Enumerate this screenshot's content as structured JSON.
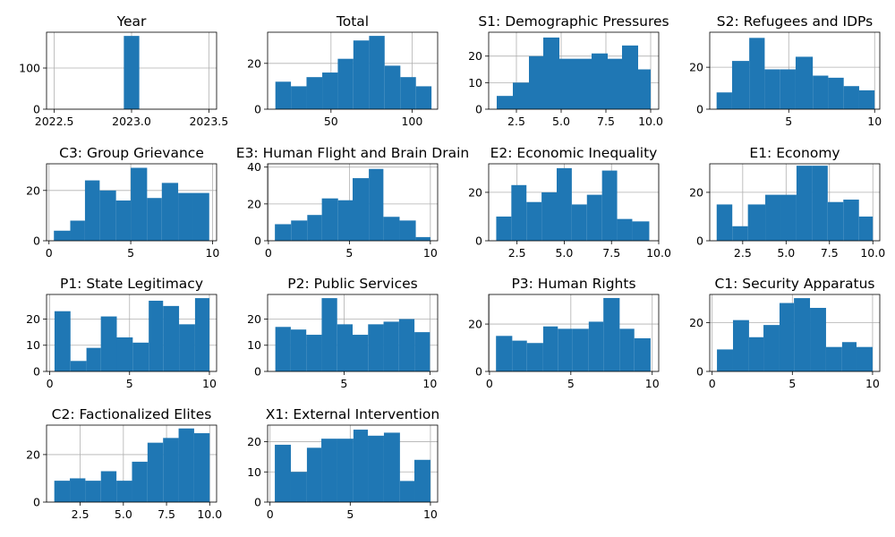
{
  "chart_data": [
    {
      "type": "bar",
      "title": "Year",
      "xlim": [
        2022.45,
        2023.55
      ],
      "ylim": [
        0,
        187
      ],
      "xticks": [
        {
          "v": 2022.5,
          "l": "2022.5"
        },
        {
          "v": 2023.0,
          "l": "2023.0"
        },
        {
          "v": 2023.5,
          "l": "2023.5"
        }
      ],
      "yticks": [
        {
          "v": 0,
          "l": "0"
        },
        {
          "v": 100,
          "l": "100"
        }
      ],
      "bins": [
        {
          "x0": 2022.95,
          "x1": 2023.05,
          "h": 178
        }
      ],
      "color": "#1f77b4"
    },
    {
      "type": "bar",
      "title": "Total",
      "xlim": [
        10.9,
        115.8
      ],
      "ylim": [
        0,
        33.6
      ],
      "xticks": [
        {
          "v": 50,
          "l": "50"
        },
        {
          "v": 100,
          "l": "100"
        }
      ],
      "yticks": [
        {
          "v": 0,
          "l": "0"
        },
        {
          "v": 20,
          "l": "20"
        }
      ],
      "bins": [
        {
          "x0": 15.7,
          "x1": 25.3,
          "h": 12
        },
        {
          "x0": 25.3,
          "x1": 34.9,
          "h": 10
        },
        {
          "x0": 34.9,
          "x1": 44.6,
          "h": 14
        },
        {
          "x0": 44.6,
          "x1": 54.2,
          "h": 16
        },
        {
          "x0": 54.2,
          "x1": 63.8,
          "h": 22
        },
        {
          "x0": 63.8,
          "x1": 73.5,
          "h": 30
        },
        {
          "x0": 73.5,
          "x1": 83.1,
          "h": 32
        },
        {
          "x0": 83.1,
          "x1": 92.8,
          "h": 19
        },
        {
          "x0": 92.8,
          "x1": 102.4,
          "h": 14
        },
        {
          "x0": 102.4,
          "x1": 112.0,
          "h": 10
        }
      ],
      "color": "#1f77b4"
    },
    {
      "type": "bar",
      "title": "S1: Demographic Pressures",
      "xlim": [
        0.95,
        10.45
      ],
      "ylim": [
        0,
        29
      ],
      "xticks": [
        {
          "v": 2.5,
          "l": "2.5"
        },
        {
          "v": 5.0,
          "l": "5.0"
        },
        {
          "v": 7.5,
          "l": "7.5"
        },
        {
          "v": 10.0,
          "l": "10.0"
        }
      ],
      "yticks": [
        {
          "v": 0,
          "l": "0"
        },
        {
          "v": 10,
          "l": "10"
        },
        {
          "v": 20,
          "l": "20"
        }
      ],
      "bins": [
        {
          "x0": 1.4,
          "x1": 2.3,
          "h": 5
        },
        {
          "x0": 2.3,
          "x1": 3.2,
          "h": 10
        },
        {
          "x0": 3.2,
          "x1": 4.0,
          "h": 20
        },
        {
          "x0": 4.0,
          "x1": 4.9,
          "h": 27
        },
        {
          "x0": 4.9,
          "x1": 5.8,
          "h": 19
        },
        {
          "x0": 5.8,
          "x1": 6.7,
          "h": 19
        },
        {
          "x0": 6.7,
          "x1": 7.6,
          "h": 21
        },
        {
          "x0": 7.6,
          "x1": 8.4,
          "h": 19
        },
        {
          "x0": 8.4,
          "x1": 9.3,
          "h": 24
        },
        {
          "x0": 9.3,
          "x1": 10.0,
          "h": 15
        }
      ],
      "color": "#1f77b4"
    },
    {
      "type": "bar",
      "title": "S2: Refugees and IDPs",
      "xlim": [
        0.4,
        10.3
      ],
      "ylim": [
        0,
        36.7
      ],
      "xticks": [
        {
          "v": 5,
          "l": "5"
        },
        {
          "v": 10,
          "l": "10"
        }
      ],
      "yticks": [
        {
          "v": 0,
          "l": "0"
        },
        {
          "v": 20,
          "l": "20"
        }
      ],
      "bins": [
        {
          "x0": 0.8,
          "x1": 1.7,
          "h": 8
        },
        {
          "x0": 1.7,
          "x1": 2.7,
          "h": 23
        },
        {
          "x0": 2.7,
          "x1": 3.6,
          "h": 34
        },
        {
          "x0": 3.6,
          "x1": 4.5,
          "h": 19
        },
        {
          "x0": 4.5,
          "x1": 5.4,
          "h": 19
        },
        {
          "x0": 5.4,
          "x1": 6.4,
          "h": 25
        },
        {
          "x0": 6.4,
          "x1": 7.3,
          "h": 16
        },
        {
          "x0": 7.3,
          "x1": 8.2,
          "h": 15
        },
        {
          "x0": 8.2,
          "x1": 9.1,
          "h": 11
        },
        {
          "x0": 9.1,
          "x1": 10.0,
          "h": 9
        }
      ],
      "color": "#1f77b4"
    },
    {
      "type": "bar",
      "title": "C3: Group Grievance",
      "xlim": [
        -0.15,
        10.25
      ],
      "ylim": [
        0,
        30.6
      ],
      "xticks": [
        {
          "v": 0,
          "l": "0"
        },
        {
          "v": 5,
          "l": "5"
        },
        {
          "v": 10,
          "l": "10"
        }
      ],
      "yticks": [
        {
          "v": 0,
          "l": "0"
        },
        {
          "v": 20,
          "l": "20"
        }
      ],
      "bins": [
        {
          "x0": 0.3,
          "x1": 1.3,
          "h": 4
        },
        {
          "x0": 1.3,
          "x1": 2.2,
          "h": 8
        },
        {
          "x0": 2.2,
          "x1": 3.1,
          "h": 24
        },
        {
          "x0": 3.1,
          "x1": 4.1,
          "h": 20
        },
        {
          "x0": 4.1,
          "x1": 5.0,
          "h": 16
        },
        {
          "x0": 5.0,
          "x1": 6.0,
          "h": 29
        },
        {
          "x0": 6.0,
          "x1": 6.9,
          "h": 17
        },
        {
          "x0": 6.9,
          "x1": 7.9,
          "h": 23
        },
        {
          "x0": 7.9,
          "x1": 8.8,
          "h": 19
        },
        {
          "x0": 8.8,
          "x1": 9.8,
          "h": 19
        }
      ],
      "color": "#1f77b4"
    },
    {
      "type": "bar",
      "title": "E3: Human Flight and Brain Drain",
      "xlim": [
        -0.05,
        10.45
      ],
      "ylim": [
        0,
        41.8
      ],
      "xticks": [
        {
          "v": 0,
          "l": "0"
        },
        {
          "v": 5,
          "l": "5"
        },
        {
          "v": 10,
          "l": "10"
        }
      ],
      "yticks": [
        {
          "v": 0,
          "l": "0"
        },
        {
          "v": 20,
          "l": "20"
        },
        {
          "v": 40,
          "l": "40"
        }
      ],
      "bins": [
        {
          "x0": 0.4,
          "x1": 1.4,
          "h": 9
        },
        {
          "x0": 1.4,
          "x1": 2.4,
          "h": 11
        },
        {
          "x0": 2.4,
          "x1": 3.3,
          "h": 14
        },
        {
          "x0": 3.3,
          "x1": 4.3,
          "h": 23
        },
        {
          "x0": 4.3,
          "x1": 5.2,
          "h": 22
        },
        {
          "x0": 5.2,
          "x1": 6.2,
          "h": 34
        },
        {
          "x0": 6.2,
          "x1": 7.1,
          "h": 39
        },
        {
          "x0": 7.1,
          "x1": 8.1,
          "h": 13
        },
        {
          "x0": 8.1,
          "x1": 9.1,
          "h": 11
        },
        {
          "x0": 9.1,
          "x1": 10.0,
          "h": 2
        }
      ],
      "color": "#1f77b4"
    },
    {
      "type": "bar",
      "title": "E2: Economic Inequality",
      "xlim": [
        1.0,
        10.0
      ],
      "ylim": [
        0,
        31.8
      ],
      "xticks": [
        {
          "v": 2.5,
          "l": "2.5"
        },
        {
          "v": 5.0,
          "l": "5.0"
        },
        {
          "v": 7.5,
          "l": "7.5"
        },
        {
          "v": 10.0,
          "l": "10.0"
        }
      ],
      "yticks": [
        {
          "v": 0,
          "l": "0"
        },
        {
          "v": 20,
          "l": "20"
        }
      ],
      "bins": [
        {
          "x0": 1.4,
          "x1": 2.2,
          "h": 10
        },
        {
          "x0": 2.2,
          "x1": 3.0,
          "h": 23
        },
        {
          "x0": 3.0,
          "x1": 3.8,
          "h": 16
        },
        {
          "x0": 3.8,
          "x1": 4.6,
          "h": 20
        },
        {
          "x0": 4.6,
          "x1": 5.4,
          "h": 30
        },
        {
          "x0": 5.4,
          "x1": 6.2,
          "h": 15
        },
        {
          "x0": 6.2,
          "x1": 7.0,
          "h": 19
        },
        {
          "x0": 7.0,
          "x1": 7.8,
          "h": 29
        },
        {
          "x0": 7.8,
          "x1": 8.6,
          "h": 9
        },
        {
          "x0": 8.6,
          "x1": 9.5,
          "h": 8
        }
      ],
      "color": "#1f77b4"
    },
    {
      "type": "bar",
      "title": "E1: Economy",
      "xlim": [
        0.6,
        10.4
      ],
      "ylim": [
        0,
        31.8
      ],
      "xticks": [
        {
          "v": 2.5,
          "l": "2.5"
        },
        {
          "v": 5.0,
          "l": "5.0"
        },
        {
          "v": 7.5,
          "l": "7.5"
        },
        {
          "v": 10.0,
          "l": "10.0"
        }
      ],
      "yticks": [
        {
          "v": 0,
          "l": "0"
        },
        {
          "v": 20,
          "l": "20"
        }
      ],
      "bins": [
        {
          "x0": 1.0,
          "x1": 1.9,
          "h": 15
        },
        {
          "x0": 1.9,
          "x1": 2.8,
          "h": 6
        },
        {
          "x0": 2.8,
          "x1": 3.8,
          "h": 15
        },
        {
          "x0": 3.8,
          "x1": 4.7,
          "h": 19
        },
        {
          "x0": 4.7,
          "x1": 5.6,
          "h": 19
        },
        {
          "x0": 5.6,
          "x1": 6.5,
          "h": 31
        },
        {
          "x0": 6.5,
          "x1": 7.4,
          "h": 31
        },
        {
          "x0": 7.4,
          "x1": 8.3,
          "h": 16
        },
        {
          "x0": 8.3,
          "x1": 9.2,
          "h": 17
        },
        {
          "x0": 9.2,
          "x1": 10.0,
          "h": 10
        }
      ],
      "color": "#1f77b4"
    },
    {
      "type": "bar",
      "title": "P1: State Legitimacy",
      "xlim": [
        -0.2,
        10.45
      ],
      "ylim": [
        0,
        29.4
      ],
      "xticks": [
        {
          "v": 0,
          "l": "0"
        },
        {
          "v": 5,
          "l": "5"
        },
        {
          "v": 10,
          "l": "10"
        }
      ],
      "yticks": [
        {
          "v": 0,
          "l": "0"
        },
        {
          "v": 10,
          "l": "10"
        },
        {
          "v": 20,
          "l": "20"
        }
      ],
      "bins": [
        {
          "x0": 0.3,
          "x1": 1.3,
          "h": 23
        },
        {
          "x0": 1.3,
          "x1": 2.3,
          "h": 4
        },
        {
          "x0": 2.3,
          "x1": 3.2,
          "h": 9
        },
        {
          "x0": 3.2,
          "x1": 4.2,
          "h": 21
        },
        {
          "x0": 4.2,
          "x1": 5.2,
          "h": 13
        },
        {
          "x0": 5.2,
          "x1": 6.2,
          "h": 11
        },
        {
          "x0": 6.2,
          "x1": 7.1,
          "h": 27
        },
        {
          "x0": 7.1,
          "x1": 8.1,
          "h": 25
        },
        {
          "x0": 8.1,
          "x1": 9.1,
          "h": 18
        },
        {
          "x0": 9.1,
          "x1": 10.0,
          "h": 28
        }
      ],
      "color": "#1f77b4"
    },
    {
      "type": "bar",
      "title": "P2: Public Services",
      "xlim": [
        0.55,
        10.45
      ],
      "ylim": [
        0,
        29.4
      ],
      "xticks": [
        {
          "v": 5,
          "l": "5"
        },
        {
          "v": 10,
          "l": "10"
        }
      ],
      "yticks": [
        {
          "v": 0,
          "l": "0"
        },
        {
          "v": 10,
          "l": "10"
        },
        {
          "v": 20,
          "l": "20"
        }
      ],
      "bins": [
        {
          "x0": 1.0,
          "x1": 1.9,
          "h": 17
        },
        {
          "x0": 1.9,
          "x1": 2.8,
          "h": 16
        },
        {
          "x0": 2.8,
          "x1": 3.7,
          "h": 14
        },
        {
          "x0": 3.7,
          "x1": 4.6,
          "h": 28
        },
        {
          "x0": 4.6,
          "x1": 5.5,
          "h": 18
        },
        {
          "x0": 5.5,
          "x1": 6.4,
          "h": 14
        },
        {
          "x0": 6.4,
          "x1": 7.3,
          "h": 18
        },
        {
          "x0": 7.3,
          "x1": 8.2,
          "h": 19
        },
        {
          "x0": 8.2,
          "x1": 9.1,
          "h": 20
        },
        {
          "x0": 9.1,
          "x1": 10.0,
          "h": 15
        }
      ],
      "color": "#1f77b4"
    },
    {
      "type": "bar",
      "title": "P3: Human Rights",
      "xlim": [
        -0.05,
        10.4
      ],
      "ylim": [
        0,
        32.5
      ],
      "xticks": [
        {
          "v": 0,
          "l": "0"
        },
        {
          "v": 5,
          "l": "5"
        },
        {
          "v": 10,
          "l": "10"
        }
      ],
      "yticks": [
        {
          "v": 0,
          "l": "0"
        },
        {
          "v": 20,
          "l": "20"
        }
      ],
      "bins": [
        {
          "x0": 0.4,
          "x1": 1.4,
          "h": 15
        },
        {
          "x0": 1.4,
          "x1": 2.3,
          "h": 13
        },
        {
          "x0": 2.3,
          "x1": 3.3,
          "h": 12
        },
        {
          "x0": 3.3,
          "x1": 4.2,
          "h": 19
        },
        {
          "x0": 4.2,
          "x1": 5.1,
          "h": 18
        },
        {
          "x0": 5.1,
          "x1": 6.1,
          "h": 18
        },
        {
          "x0": 6.1,
          "x1": 7.0,
          "h": 21
        },
        {
          "x0": 7.0,
          "x1": 8.0,
          "h": 31
        },
        {
          "x0": 8.0,
          "x1": 8.9,
          "h": 18
        },
        {
          "x0": 8.9,
          "x1": 9.9,
          "h": 14
        }
      ],
      "color": "#1f77b4"
    },
    {
      "type": "bar",
      "title": "C1: Security Apparatus",
      "xlim": [
        -0.15,
        10.45
      ],
      "ylim": [
        0,
        31.5
      ],
      "xticks": [
        {
          "v": 0,
          "l": "0"
        },
        {
          "v": 5,
          "l": "5"
        },
        {
          "v": 10,
          "l": "10"
        }
      ],
      "yticks": [
        {
          "v": 0,
          "l": "0"
        },
        {
          "v": 20,
          "l": "20"
        }
      ],
      "bins": [
        {
          "x0": 0.3,
          "x1": 1.3,
          "h": 9
        },
        {
          "x0": 1.3,
          "x1": 2.3,
          "h": 21
        },
        {
          "x0": 2.3,
          "x1": 3.2,
          "h": 14
        },
        {
          "x0": 3.2,
          "x1": 4.2,
          "h": 19
        },
        {
          "x0": 4.2,
          "x1": 5.1,
          "h": 28
        },
        {
          "x0": 5.1,
          "x1": 6.1,
          "h": 30
        },
        {
          "x0": 6.1,
          "x1": 7.1,
          "h": 26
        },
        {
          "x0": 7.1,
          "x1": 8.1,
          "h": 10
        },
        {
          "x0": 8.1,
          "x1": 9.0,
          "h": 12
        },
        {
          "x0": 9.0,
          "x1": 10.0,
          "h": 10
        }
      ],
      "color": "#1f77b4"
    },
    {
      "type": "bar",
      "title": "C2: Factionalized Elites",
      "xlim": [
        0.55,
        10.4
      ],
      "ylim": [
        0,
        32.4
      ],
      "xticks": [
        {
          "v": 2.5,
          "l": "2.5"
        },
        {
          "v": 5.0,
          "l": "5.0"
        },
        {
          "v": 7.5,
          "l": "7.5"
        },
        {
          "v": 10.0,
          "l": "10.0"
        }
      ],
      "yticks": [
        {
          "v": 0,
          "l": "0"
        },
        {
          "v": 20,
          "l": "20"
        }
      ],
      "bins": [
        {
          "x0": 1.0,
          "x1": 1.9,
          "h": 9
        },
        {
          "x0": 1.9,
          "x1": 2.8,
          "h": 10
        },
        {
          "x0": 2.8,
          "x1": 3.7,
          "h": 9
        },
        {
          "x0": 3.7,
          "x1": 4.6,
          "h": 13
        },
        {
          "x0": 4.6,
          "x1": 5.5,
          "h": 9
        },
        {
          "x0": 5.5,
          "x1": 6.4,
          "h": 17
        },
        {
          "x0": 6.4,
          "x1": 7.3,
          "h": 25
        },
        {
          "x0": 7.3,
          "x1": 8.2,
          "h": 27
        },
        {
          "x0": 8.2,
          "x1": 9.1,
          "h": 31
        },
        {
          "x0": 9.1,
          "x1": 10.0,
          "h": 29
        }
      ],
      "color": "#1f77b4"
    },
    {
      "type": "bar",
      "title": "X1: External Intervention",
      "xlim": [
        -0.15,
        10.45
      ],
      "ylim": [
        0,
        25.5
      ],
      "xticks": [
        {
          "v": 0,
          "l": "0"
        },
        {
          "v": 5,
          "l": "5"
        },
        {
          "v": 10,
          "l": "10"
        }
      ],
      "yticks": [
        {
          "v": 0,
          "l": "0"
        },
        {
          "v": 10,
          "l": "10"
        },
        {
          "v": 20,
          "l": "20"
        }
      ],
      "bins": [
        {
          "x0": 0.3,
          "x1": 1.3,
          "h": 19
        },
        {
          "x0": 1.3,
          "x1": 2.3,
          "h": 10
        },
        {
          "x0": 2.3,
          "x1": 3.2,
          "h": 18
        },
        {
          "x0": 3.2,
          "x1": 4.2,
          "h": 21
        },
        {
          "x0": 4.2,
          "x1": 5.2,
          "h": 21
        },
        {
          "x0": 5.2,
          "x1": 6.1,
          "h": 24
        },
        {
          "x0": 6.1,
          "x1": 7.1,
          "h": 22
        },
        {
          "x0": 7.1,
          "x1": 8.1,
          "h": 23
        },
        {
          "x0": 8.1,
          "x1": 9.0,
          "h": 7
        },
        {
          "x0": 9.0,
          "x1": 10.0,
          "h": 14
        }
      ],
      "color": "#1f77b4"
    }
  ]
}
